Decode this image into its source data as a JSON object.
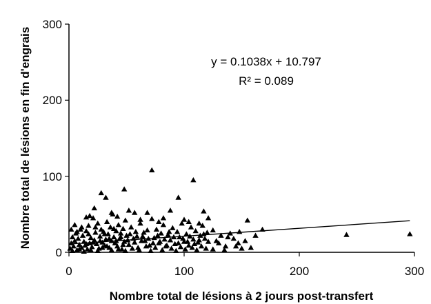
{
  "chart_data": {
    "type": "scatter",
    "xlabel": "Nombre total de lésions à 2 jours post-transfert",
    "ylabel": "Nombre total de lésions en fin d'engrais",
    "xlim": [
      0,
      300
    ],
    "ylim": [
      0,
      300
    ],
    "x_ticks": [
      "0",
      "100",
      "200",
      "300"
    ],
    "y_ticks": [
      "0",
      "100",
      "200",
      "300"
    ],
    "grid": false,
    "legend": "none",
    "marker": "triangle",
    "marker_color": "#000000",
    "trendline": {
      "slope": 0.1038,
      "intercept": 10.797,
      "x_range": [
        0,
        296
      ],
      "equation": "y = 0.1038x + 10.797",
      "r_squared": "R² = 0.089"
    },
    "points": [
      [
        1,
        5
      ],
      [
        2,
        12
      ],
      [
        3,
        20
      ],
      [
        4,
        8
      ],
      [
        5,
        15
      ],
      [
        6,
        25
      ],
      [
        7,
        3
      ],
      [
        8,
        18
      ],
      [
        9,
        10
      ],
      [
        10,
        30
      ],
      [
        11,
        6
      ],
      [
        12,
        22
      ],
      [
        13,
        14
      ],
      [
        14,
        9
      ],
      [
        15,
        28
      ],
      [
        16,
        4
      ],
      [
        17,
        35
      ],
      [
        18,
        12
      ],
      [
        19,
        19
      ],
      [
        20,
        7
      ],
      [
        21,
        45
      ],
      [
        22,
        16
      ],
      [
        23,
        26
      ],
      [
        24,
        11
      ],
      [
        25,
        38
      ],
      [
        26,
        5
      ],
      [
        27,
        21
      ],
      [
        28,
        30
      ],
      [
        29,
        13
      ],
      [
        30,
        27
      ],
      [
        31,
        9
      ],
      [
        32,
        17
      ],
      [
        33,
        40
      ],
      [
        34,
        24
      ],
      [
        35,
        6
      ],
      [
        36,
        33
      ],
      [
        37,
        15
      ],
      [
        38,
        50
      ],
      [
        39,
        20
      ],
      [
        40,
        12
      ],
      [
        41,
        28
      ],
      [
        42,
        8
      ],
      [
        43,
        36
      ],
      [
        44,
        18
      ],
      [
        45,
        25
      ],
      [
        46,
        4
      ],
      [
        47,
        31
      ],
      [
        48,
        14
      ],
      [
        49,
        42
      ],
      [
        50,
        22
      ],
      [
        52,
        10
      ],
      [
        54,
        33
      ],
      [
        56,
        18
      ],
      [
        58,
        27
      ],
      [
        60,
        6
      ],
      [
        62,
        38
      ],
      [
        64,
        21
      ],
      [
        66,
        15
      ],
      [
        68,
        29
      ],
      [
        70,
        9
      ],
      [
        72,
        44
      ],
      [
        74,
        19
      ],
      [
        76,
        30
      ],
      [
        78,
        12
      ],
      [
        80,
        25
      ],
      [
        82,
        36
      ],
      [
        84,
        8
      ],
      [
        86,
        23
      ],
      [
        88,
        16
      ],
      [
        90,
        32
      ],
      [
        92,
        11
      ],
      [
        94,
        27
      ],
      [
        96,
        20
      ],
      [
        98,
        38
      ],
      [
        100,
        14
      ],
      [
        102,
        24
      ],
      [
        104,
        9
      ],
      [
        106,
        33
      ],
      [
        108,
        17
      ],
      [
        110,
        28
      ],
      [
        112,
        13
      ],
      [
        114,
        22
      ],
      [
        116,
        35
      ],
      [
        118,
        18
      ],
      [
        120,
        26
      ],
      [
        2,
        30
      ],
      [
        3,
        2
      ],
      [
        5,
        36
      ],
      [
        7,
        27
      ],
      [
        9,
        4
      ],
      [
        11,
        33
      ],
      [
        13,
        1
      ],
      [
        15,
        11
      ],
      [
        17,
        24
      ],
      [
        19,
        3
      ],
      [
        21,
        13
      ],
      [
        23,
        33
      ],
      [
        25,
        2
      ],
      [
        27,
        15
      ],
      [
        29,
        6
      ],
      [
        31,
        24
      ],
      [
        33,
        8
      ],
      [
        35,
        18
      ],
      [
        37,
        3
      ],
      [
        39,
        31
      ],
      [
        41,
        15
      ],
      [
        43,
        4
      ],
      [
        45,
        20
      ],
      [
        47,
        10
      ],
      [
        49,
        2
      ],
      [
        51,
        16
      ],
      [
        53,
        24
      ],
      [
        55,
        5
      ],
      [
        57,
        13
      ],
      [
        59,
        21
      ],
      [
        61,
        3
      ],
      [
        63,
        15
      ],
      [
        65,
        26
      ],
      [
        67,
        8
      ],
      [
        69,
        18
      ],
      [
        71,
        2
      ],
      [
        73,
        12
      ],
      [
        75,
        6
      ],
      [
        77,
        22
      ],
      [
        79,
        14
      ],
      [
        81,
        3
      ],
      [
        83,
        17
      ],
      [
        85,
        9
      ],
      [
        87,
        27
      ],
      [
        89,
        5
      ],
      [
        91,
        20
      ],
      [
        93,
        2
      ],
      [
        95,
        12
      ],
      [
        97,
        7
      ],
      [
        99,
        18
      ],
      [
        101,
        4
      ],
      [
        103,
        14
      ],
      [
        105,
        21
      ],
      [
        107,
        6
      ],
      [
        109,
        11
      ],
      [
        111,
        3
      ],
      [
        113,
        16
      ],
      [
        115,
        8
      ],
      [
        117,
        24
      ],
      [
        119,
        5
      ],
      [
        121,
        14
      ],
      [
        15,
        46
      ],
      [
        18,
        48
      ],
      [
        22,
        58
      ],
      [
        28,
        78
      ],
      [
        32,
        72
      ],
      [
        37,
        52
      ],
      [
        42,
        47
      ],
      [
        48,
        83
      ],
      [
        52,
        55
      ],
      [
        57,
        52
      ],
      [
        62,
        43
      ],
      [
        68,
        52
      ],
      [
        72,
        108
      ],
      [
        78,
        40
      ],
      [
        82,
        45
      ],
      [
        88,
        55
      ],
      [
        95,
        72
      ],
      [
        100,
        43
      ],
      [
        104,
        40
      ],
      [
        108,
        95
      ],
      [
        113,
        38
      ],
      [
        117,
        54
      ],
      [
        121,
        45
      ],
      [
        125,
        29
      ],
      [
        128,
        15
      ],
      [
        132,
        22
      ],
      [
        136,
        8
      ],
      [
        140,
        25
      ],
      [
        143,
        18
      ],
      [
        147,
        12
      ],
      [
        150,
        5
      ],
      [
        153,
        15
      ],
      [
        155,
        42
      ],
      [
        158,
        6
      ],
      [
        162,
        22
      ],
      [
        168,
        30
      ],
      [
        241,
        23
      ],
      [
        296,
        24
      ],
      [
        125,
        4
      ],
      [
        130,
        12
      ],
      [
        135,
        3
      ],
      [
        138,
        20
      ],
      [
        145,
        8
      ],
      [
        148,
        27
      ]
    ]
  }
}
